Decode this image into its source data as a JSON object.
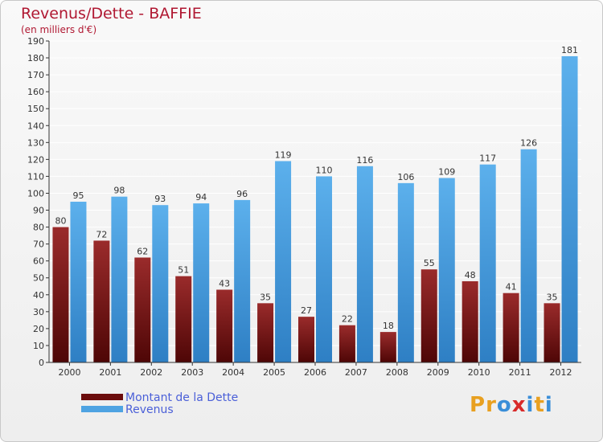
{
  "header": {
    "title": "Revenus/Dette - BAFFIE",
    "subtitle": "(en milliers d'€)"
  },
  "colors": {
    "dette": "#6b0c0c",
    "revenus": "#4ea3e2",
    "axis": "#333333",
    "grid": "#ffffff",
    "title": "#b01832"
  },
  "legend": {
    "placement": "bottom-left",
    "items": [
      {
        "label": "Montant de la Dette",
        "color": "#6b0c0c"
      },
      {
        "label": "Revenus",
        "color": "#4ea3e2"
      }
    ]
  },
  "logo": {
    "text": "Proxiti",
    "letters": [
      "P",
      "r",
      "o",
      "x",
      "i",
      "t",
      "i"
    ],
    "colors": [
      "#e8a020",
      "#e8a020",
      "#3a8ed8",
      "#d82a2a",
      "#3a8ed8",
      "#e8a020",
      "#3a8ed8"
    ]
  },
  "chart_data": {
    "type": "bar",
    "title": "Revenus/Dette - BAFFIE",
    "subtitle": "(en milliers d'€)",
    "xlabel": "",
    "ylabel": "",
    "ylim": [
      0,
      190
    ],
    "ytick_step": 10,
    "grid": true,
    "categories": [
      "2000",
      "2001",
      "2002",
      "2003",
      "2004",
      "2005",
      "2006",
      "2007",
      "2008",
      "2009",
      "2010",
      "2011",
      "2012"
    ],
    "series": [
      {
        "name": "Montant de la Dette",
        "values": [
          80,
          72,
          62,
          51,
          43,
          35,
          27,
          22,
          18,
          55,
          48,
          41,
          35
        ]
      },
      {
        "name": "Revenus",
        "values": [
          95,
          98,
          93,
          94,
          96,
          119,
          110,
          116,
          106,
          109,
          117,
          126,
          181
        ]
      }
    ]
  }
}
